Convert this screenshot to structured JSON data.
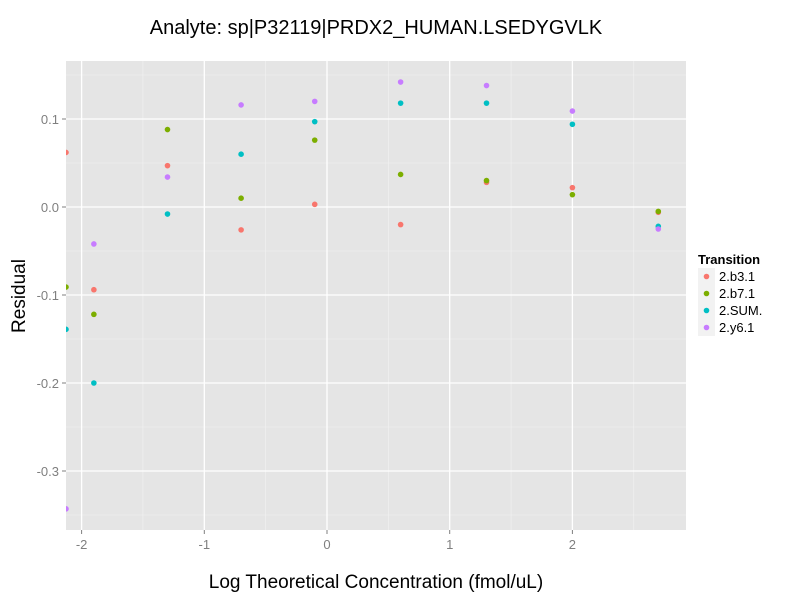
{
  "chart_data": {
    "type": "scatter",
    "title": "Analyte: sp|P32119|PRDX2_HUMAN.LSEDYGVLK",
    "xlabel": "Log Theoretical Concentration (fmol/uL)",
    "ylabel": "Residual",
    "xlim": [
      -2.13,
      2.93
    ],
    "ylim": [
      -0.366,
      0.166
    ],
    "x_ticks": [
      -2,
      -1,
      0,
      1,
      2
    ],
    "x_tick_labels": [
      "-2",
      "-1",
      "0",
      "1",
      "2"
    ],
    "y_ticks": [
      0.1,
      0.0,
      -0.1,
      -0.2,
      -0.3
    ],
    "y_tick_labels": [
      "0.1",
      "0.0",
      "-0.1",
      "-0.2",
      "-0.3"
    ],
    "grid": true,
    "legend_title": "Transition",
    "legend_position": "right",
    "x": [
      -2.13,
      -1.9,
      -1.3,
      -0.7,
      -0.1,
      0.6,
      1.3,
      2.0,
      2.7
    ],
    "series": [
      {
        "name": "2.b3.1",
        "color": "#F8766D",
        "values": [
          0.062,
          -0.094,
          0.047,
          -0.026,
          0.003,
          -0.02,
          0.028,
          0.022,
          -0.006
        ]
      },
      {
        "name": "2.b7.1",
        "color": "#7CAE00",
        "values": [
          -0.091,
          -0.122,
          0.088,
          0.01,
          0.076,
          0.037,
          0.03,
          0.014,
          -0.005
        ]
      },
      {
        "name": "2.SUM.",
        "color": "#00BFC4",
        "values": [
          -0.139,
          -0.2,
          -0.008,
          0.06,
          0.097,
          0.118,
          0.118,
          0.094,
          -0.022
        ]
      },
      {
        "name": "2.y6.1",
        "color": "#C77CFF",
        "values": [
          -0.343,
          -0.042,
          0.034,
          0.116,
          0.12,
          0.142,
          0.138,
          0.109,
          -0.025
        ]
      }
    ]
  }
}
